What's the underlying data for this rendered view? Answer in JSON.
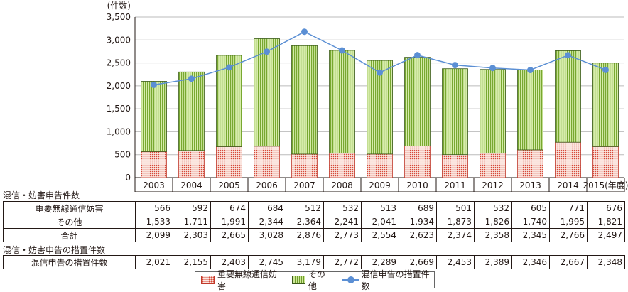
{
  "chart_data": {
    "type": "bar",
    "stacked": true,
    "y_unit_label": "(件数)",
    "ylim": [
      0,
      3500
    ],
    "y_ticks": [
      "0",
      "500",
      "1,000",
      "1,500",
      "2,000",
      "2,500",
      "3,000",
      "3,500"
    ],
    "categories": [
      "2003",
      "2004",
      "2005",
      "2006",
      "2007",
      "2008",
      "2009",
      "2010",
      "2011",
      "2012",
      "2013",
      "2014",
      "2015(年度)"
    ],
    "series": [
      {
        "name": "重要無線通信妨害",
        "kind": "bar",
        "color": "#e8513f",
        "values": [
          566,
          592,
          674,
          684,
          512,
          532,
          513,
          689,
          501,
          532,
          605,
          771,
          676
        ]
      },
      {
        "name": "その他",
        "kind": "bar",
        "color": "#8cc63f",
        "values": [
          1533,
          1711,
          1991,
          2344,
          2364,
          2241,
          2041,
          1934,
          1873,
          1826,
          1740,
          1995,
          1821
        ]
      },
      {
        "name": "混信申告の措置件数",
        "kind": "line",
        "color": "#5b8fd4",
        "values": [
          2021,
          2155,
          2403,
          2745,
          3179,
          2772,
          2289,
          2669,
          2453,
          2389,
          2346,
          2667,
          2348
        ]
      }
    ],
    "grid": "horizontal",
    "legend_position": "bottom"
  },
  "table": {
    "section1_title": "混信・妨害申告件数",
    "section2_title": "混信・妨害申告の措置件数",
    "rows1": [
      {
        "label": "重要無線通信妨害",
        "cells": [
          "566",
          "592",
          "674",
          "684",
          "512",
          "532",
          "513",
          "689",
          "501",
          "532",
          "605",
          "771",
          "676"
        ]
      },
      {
        "label": "その他",
        "cells": [
          "1,533",
          "1,711",
          "1,991",
          "2,344",
          "2,364",
          "2,241",
          "2,041",
          "1,934",
          "1,873",
          "1,826",
          "1,740",
          "1,995",
          "1,821"
        ]
      },
      {
        "label": "合計",
        "cells": [
          "2,099",
          "2,303",
          "2,665",
          "3,028",
          "2,876",
          "2,773",
          "2,554",
          "2,623",
          "2,374",
          "2,358",
          "2,345",
          "2,766",
          "2,497"
        ]
      }
    ],
    "rows2": [
      {
        "label": "混信申告の措置件数",
        "cells": [
          "2,021",
          "2,155",
          "2,403",
          "2,745",
          "3,179",
          "2,772",
          "2,289",
          "2,669",
          "2,453",
          "2,389",
          "2,346",
          "2,667",
          "2,348"
        ]
      }
    ]
  },
  "legend": {
    "item1": "重要無線通信妨害",
    "item2": "その他",
    "item3": "混信申告の措置件数"
  }
}
